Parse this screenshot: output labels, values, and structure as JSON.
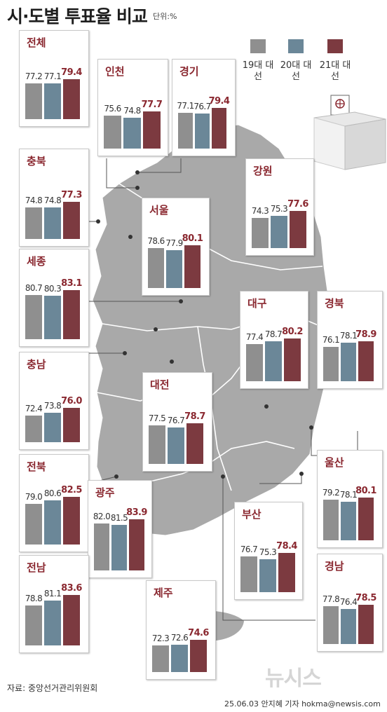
{
  "title": "시·도별 투표율 비교",
  "unit": "단위:%",
  "legend": [
    {
      "label": "19대 대선",
      "color": "#8f8f8f"
    },
    {
      "label": "20대 대선",
      "color": "#6b8798"
    },
    {
      "label": "21대 대선",
      "color": "#7c3a40"
    }
  ],
  "chart_data": {
    "type": "bar",
    "series_names": [
      "19대 대선",
      "20대 대선",
      "21대 대선"
    ],
    "colors": [
      "#8f8f8f",
      "#6b8798",
      "#7c3a40"
    ],
    "regions": [
      {
        "name": "전체",
        "values": [
          77.2,
          77.1,
          79.4
        ]
      },
      {
        "name": "인천",
        "values": [
          75.6,
          74.8,
          77.7
        ]
      },
      {
        "name": "경기",
        "values": [
          77.1,
          76.7,
          79.4
        ]
      },
      {
        "name": "충북",
        "values": [
          74.8,
          74.8,
          77.3
        ]
      },
      {
        "name": "강원",
        "values": [
          74.3,
          75.3,
          77.6
        ]
      },
      {
        "name": "서울",
        "values": [
          78.6,
          77.9,
          80.1
        ]
      },
      {
        "name": "세종",
        "values": [
          80.7,
          80.3,
          83.1
        ]
      },
      {
        "name": "대구",
        "values": [
          77.4,
          78.7,
          80.2
        ]
      },
      {
        "name": "경북",
        "values": [
          76.1,
          78.1,
          78.9
        ]
      },
      {
        "name": "충남",
        "values": [
          72.4,
          73.8,
          76.0
        ]
      },
      {
        "name": "대전",
        "values": [
          77.5,
          76.7,
          78.7
        ]
      },
      {
        "name": "전북",
        "values": [
          79.0,
          80.6,
          82.5
        ]
      },
      {
        "name": "광주",
        "values": [
          82.0,
          81.5,
          83.9
        ]
      },
      {
        "name": "울산",
        "values": [
          79.2,
          78.1,
          80.1
        ]
      },
      {
        "name": "부산",
        "values": [
          76.7,
          75.3,
          78.4
        ]
      },
      {
        "name": "전남",
        "values": [
          78.8,
          81.1,
          83.6
        ]
      },
      {
        "name": "제주",
        "values": [
          72.3,
          72.6,
          74.6
        ]
      },
      {
        "name": "경남",
        "values": [
          77.8,
          76.4,
          78.5
        ]
      }
    ]
  },
  "source": "자료: 중앙선거관리위원회",
  "credit": "25.06.03 안지혜 기자 hokma@newsis.com",
  "logo": "뉴시스"
}
